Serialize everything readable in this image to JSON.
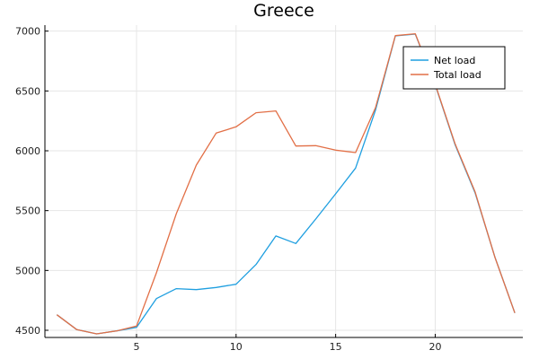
{
  "chart_data": {
    "type": "line",
    "title": "Greece",
    "xlabel": "",
    "ylabel": "",
    "xlim": [
      0.4,
      24.4
    ],
    "ylim": [
      4440,
      7050
    ],
    "xticks": [
      5,
      10,
      15,
      20
    ],
    "yticks": [
      4500,
      5000,
      5500,
      6000,
      6500,
      7000
    ],
    "grid": true,
    "legend_position": "top-right",
    "x": [
      1,
      2,
      3,
      4,
      5,
      6,
      7,
      8,
      9,
      10,
      11,
      12,
      13,
      14,
      15,
      16,
      17,
      18,
      19,
      20,
      21,
      22,
      23,
      24
    ],
    "series": [
      {
        "name": "Net load",
        "color": "#1f9fe0",
        "values": [
          4630,
          4505,
          4470,
          4495,
          4525,
          4765,
          4848,
          4840,
          4858,
          4885,
          5050,
          5288,
          5225,
          5430,
          5640,
          5855,
          6340,
          6960,
          6975,
          6550,
          6050,
          5650,
          5110,
          4645
        ]
      },
      {
        "name": "Total load",
        "color": "#e26f46",
        "values": [
          4630,
          4505,
          4470,
          4495,
          4535,
          4980,
          5475,
          5880,
          6148,
          6200,
          6318,
          6333,
          6040,
          6043,
          6005,
          5985,
          6360,
          6962,
          6978,
          6555,
          6058,
          5658,
          5108,
          4645
        ]
      }
    ]
  }
}
